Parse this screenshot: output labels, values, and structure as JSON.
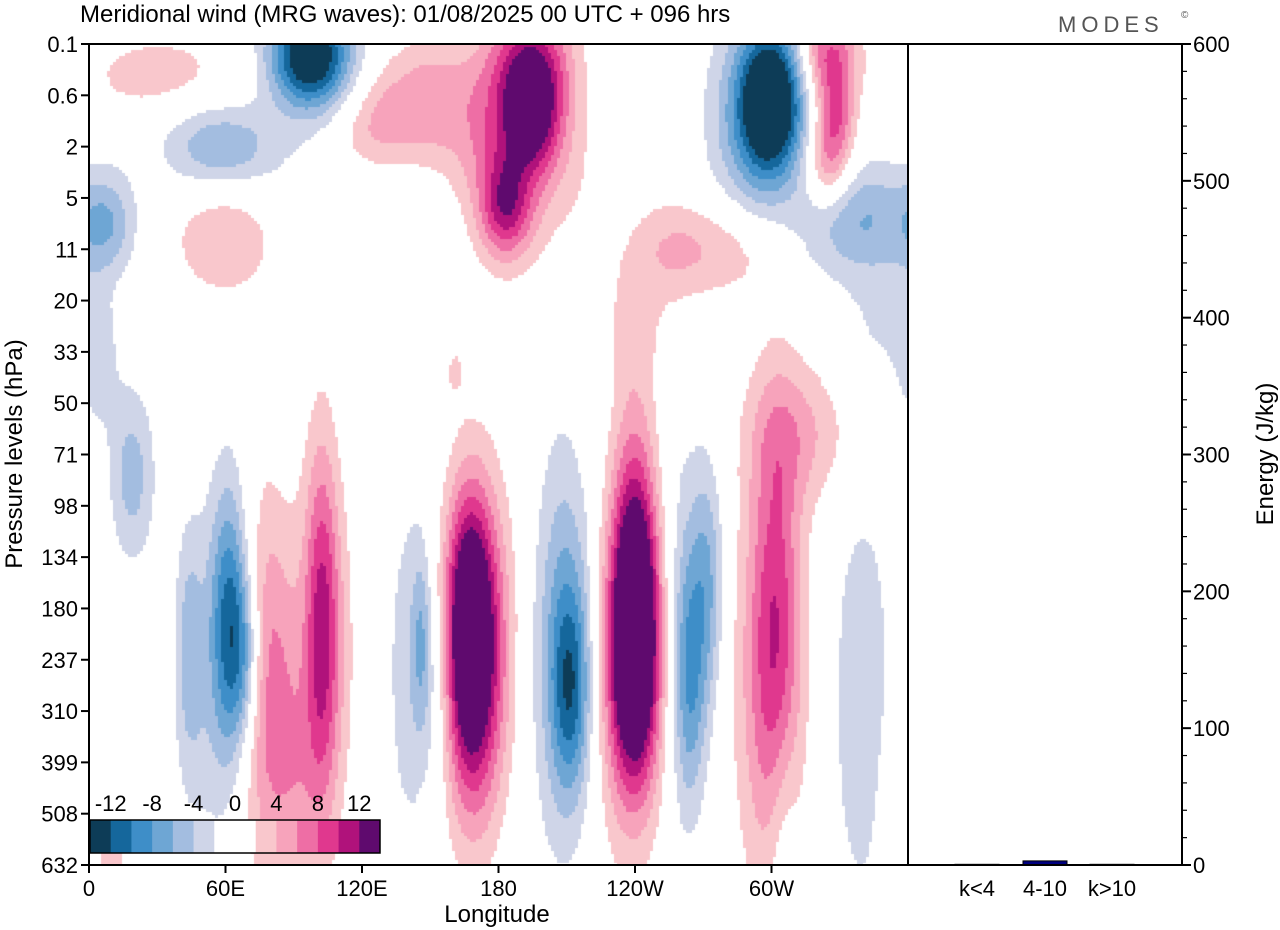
{
  "header": {
    "title": "Meridional wind (MRG waves):  01/08/2025  00 UTC  + 096 hrs",
    "brand": "MODES",
    "brand_mark": "©"
  },
  "chart_data": [
    {
      "type": "heatmap",
      "title": "Meridional wind (MRG waves):  01/08/2025  00 UTC  + 096 hrs",
      "xlabel": "Longitude",
      "ylabel": "Pressure levels (hPa)",
      "x_ticks": [
        "0",
        "60E",
        "120E",
        "180",
        "120W",
        "60W"
      ],
      "x_tick_degrees": [
        0,
        60,
        120,
        180,
        240,
        300
      ],
      "x_range_degrees": [
        0,
        360
      ],
      "y_ticks": [
        "0.1",
        "0.6",
        "2",
        "5",
        "11",
        "20",
        "33",
        "50",
        "71",
        "98",
        "134",
        "180",
        "237",
        "310",
        "399",
        "508",
        "632"
      ],
      "color_scale": {
        "labels": [
          "-12",
          "-8",
          "-4",
          "0",
          "4",
          "8",
          "12"
        ],
        "colors": [
          "#0d3c57",
          "#15679c",
          "#3e8ec8",
          "#6ea6d4",
          "#a3bde0",
          "#cfd5e8",
          "#ffffff",
          "#ffffff",
          "#f9c7cc",
          "#f7a3bb",
          "#ee6ea5",
          "#e0388e",
          "#b0127b",
          "#5f0a6e"
        ]
      },
      "blobs": [
        {
          "lon": 62,
          "lev": 11.3,
          "w": 6,
          "h": 1.9,
          "v": -11
        },
        {
          "lon": 69,
          "lev": 12.0,
          "w": 5,
          "h": 1.2,
          "v": -6
        },
        {
          "lon": 44,
          "lev": 11.8,
          "w": 4,
          "h": 1.6,
          "v": -4
        },
        {
          "lon": 19,
          "lev": 8.4,
          "w": 7,
          "h": 1.2,
          "v": -5
        },
        {
          "lon": 53,
          "lev": 12.5,
          "w": 10,
          "h": 2.5,
          "v": -3
        },
        {
          "lon": 146,
          "lev": 11.6,
          "w": 3,
          "h": 1.2,
          "v": -4
        },
        {
          "lon": 76,
          "lev": 12.2,
          "w": 11,
          "h": 2.3,
          "v": 5
        },
        {
          "lon": 106,
          "lev": 11.7,
          "w": 7,
          "h": 2.3,
          "v": 4
        },
        {
          "lon": 84,
          "lev": 12.3,
          "w": 15,
          "h": 2.6,
          "v": 2
        },
        {
          "lon": 168,
          "lev": 12.2,
          "w": 9,
          "h": 2.1,
          "v": 12
        },
        {
          "lon": 167,
          "lev": 11.0,
          "w": 7,
          "h": 1.7,
          "v": 9
        },
        {
          "lon": 178,
          "lev": 11.5,
          "w": 9,
          "h": 2.3,
          "v": 3
        },
        {
          "lon": 140,
          "lev": 12.2,
          "w": 7,
          "h": 2.6,
          "v": -3
        },
        {
          "lon": 153,
          "lev": 12.5,
          "w": 6,
          "h": 1.6,
          "v": -3
        },
        {
          "lon": 212,
          "lev": 12.6,
          "w": 6,
          "h": 1.4,
          "v": -7
        },
        {
          "lon": 210,
          "lev": 11.5,
          "w": 8,
          "h": 2.5,
          "v": -5
        },
        {
          "lon": 204,
          "lev": 12.1,
          "w": 10,
          "h": 3.0,
          "v": -2
        },
        {
          "lon": 240,
          "lev": 12.0,
          "w": 8,
          "h": 1.8,
          "v": 14
        },
        {
          "lon": 240,
          "lev": 10.2,
          "w": 7,
          "h": 2.1,
          "v": 10
        },
        {
          "lon": 236,
          "lev": 12.4,
          "w": 12,
          "h": 2.7,
          "v": 3
        },
        {
          "lon": 264,
          "lev": 12.4,
          "w": 5,
          "h": 1.7,
          "v": -6
        },
        {
          "lon": 272,
          "lev": 10.5,
          "w": 5,
          "h": 1.6,
          "v": -5
        },
        {
          "lon": 262,
          "lev": 11.2,
          "w": 9,
          "h": 2.7,
          "v": -3
        },
        {
          "lon": 302,
          "lev": 11.5,
          "w": 8,
          "h": 3.0,
          "v": 8
        },
        {
          "lon": 296,
          "lev": 12.4,
          "w": 12,
          "h": 3.0,
          "v": 3
        },
        {
          "lon": 102,
          "lev": 11.1,
          "w": 5,
          "h": 2.5,
          "v": 7
        },
        {
          "lon": 305,
          "lev": 15.3,
          "w": 5,
          "h": 1.8,
          "v": -3
        },
        {
          "lon": 340,
          "lev": 12.8,
          "w": 9,
          "h": 2.8,
          "v": -4
        },
        {
          "lon": 357,
          "lev": 14.8,
          "w": 7,
          "h": 1.4,
          "v": 2
        },
        {
          "lon": 313,
          "lev": 7.6,
          "w": 16,
          "h": 1.0,
          "v": 4
        },
        {
          "lon": 4,
          "lev": 6.1,
          "w": 6,
          "h": 1.0,
          "v": -3
        },
        {
          "lon": 11,
          "lev": 16.5,
          "w": 5,
          "h": 1.2,
          "v": 3
        },
        {
          "lon": 90,
          "lev": 14.5,
          "w": 10,
          "h": 1.5,
          "v": 3
        },
        {
          "lon": 96,
          "lev": 0.2,
          "w": 12,
          "h": 0.7,
          "v": -14
        },
        {
          "lon": 110,
          "lev": 0.6,
          "w": 15,
          "h": 0.8,
          "v": -4
        },
        {
          "lon": 58,
          "lev": 2.0,
          "w": 18,
          "h": 0.6,
          "v": -6
        },
        {
          "lon": 8,
          "lev": 3.5,
          "w": 9,
          "h": 0.7,
          "v": -5
        },
        {
          "lon": 60,
          "lev": 3.8,
          "w": 16,
          "h": 0.8,
          "v": 4
        },
        {
          "lon": 195,
          "lev": 0.3,
          "w": 12,
          "h": 0.8,
          "v": 8
        },
        {
          "lon": 195,
          "lev": 1.4,
          "w": 9,
          "h": 0.8,
          "v": 10
        },
        {
          "lon": 175,
          "lev": 1.5,
          "w": 15,
          "h": 1.2,
          "v": 5
        },
        {
          "lon": 183,
          "lev": 3.2,
          "w": 8,
          "h": 0.7,
          "v": 9
        },
        {
          "lon": 197,
          "lev": 2.3,
          "w": 20,
          "h": 1.4,
          "v": 3
        },
        {
          "lon": 258,
          "lev": 4.0,
          "w": 14,
          "h": 0.7,
          "v": 4
        },
        {
          "lon": 285,
          "lev": 4.0,
          "w": 14,
          "h": 0.7,
          "v": 3
        },
        {
          "lon": 300,
          "lev": 1.1,
          "w": 10,
          "h": 1.0,
          "v": -16
        },
        {
          "lon": 290,
          "lev": 1.6,
          "w": 14,
          "h": 1.5,
          "v": -5
        },
        {
          "lon": 338,
          "lev": 3.4,
          "w": 18,
          "h": 0.8,
          "v": -6
        },
        {
          "lon": 325,
          "lev": 0.2,
          "w": 9,
          "h": 0.6,
          "v": 8
        },
        {
          "lon": 328,
          "lev": 1.4,
          "w": 6,
          "h": 0.6,
          "v": 7
        },
        {
          "lon": 325,
          "lev": 2.4,
          "w": 7,
          "h": 0.6,
          "v": 6
        },
        {
          "lon": 30,
          "lev": 0.6,
          "w": 24,
          "h": 0.6,
          "v": 3
        },
        {
          "lon": 127,
          "lev": 1.4,
          "w": 15,
          "h": 0.9,
          "v": 6
        },
        {
          "lon": 150,
          "lev": 1.0,
          "w": 10,
          "h": 0.8,
          "v": 3
        },
        {
          "lon": 120,
          "lev": 3.0,
          "w": 25,
          "h": 0.8,
          "v": -2
        },
        {
          "lon": 240,
          "lev": 5.5,
          "w": 12,
          "h": 1.0,
          "v": 2
        },
        {
          "lon": 348,
          "lev": 5.5,
          "w": 12,
          "h": 1.0,
          "v": -2
        },
        {
          "lon": 160,
          "lev": 6.3,
          "w": 5,
          "h": 0.5,
          "v": 2
        }
      ]
    },
    {
      "type": "bar",
      "categories": [
        "k<4",
        "4-10",
        "k>10"
      ],
      "values": [
        0.5,
        3,
        0.5
      ],
      "ylabel": "Energy (J/kg)",
      "ylim": [
        0,
        600
      ],
      "y_ticks": [
        0,
        100,
        200,
        300,
        400,
        500,
        600
      ],
      "bar_colors": [
        "#000080",
        "#000080",
        "#000080"
      ]
    }
  ]
}
